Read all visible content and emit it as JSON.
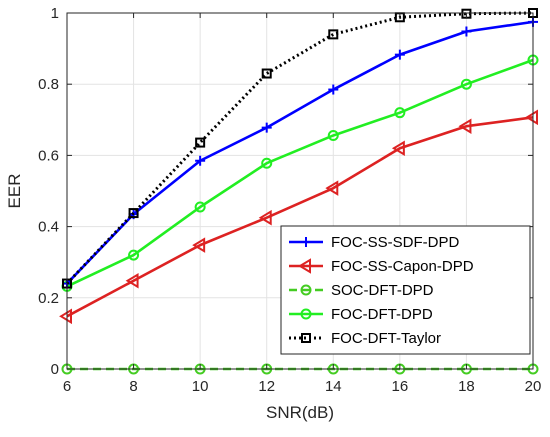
{
  "chart_data": {
    "type": "line",
    "xlabel": "SNR(dB)",
    "ylabel": "EER",
    "xlim": [
      6,
      20
    ],
    "ylim": [
      0,
      1
    ],
    "x": [
      6,
      8,
      10,
      12,
      14,
      16,
      18,
      20
    ],
    "xticks": [
      "6",
      "8",
      "10",
      "12",
      "14",
      "16",
      "18",
      "20"
    ],
    "yticks": [
      "0",
      "0.2",
      "0.4",
      "0.6",
      "0.8",
      "1"
    ],
    "grid": true,
    "legend_position": "bottom-right",
    "series": [
      {
        "name": "FOC-SS-SDF-DPD",
        "values": [
          0.24,
          0.435,
          0.585,
          0.678,
          0.785,
          0.883,
          0.948,
          0.975
        ],
        "color": "#0000ff",
        "marker": "plus",
        "dash": "solid"
      },
      {
        "name": "FOC-SS-Capon-DPD",
        "values": [
          0.148,
          0.248,
          0.348,
          0.425,
          0.508,
          0.62,
          0.682,
          0.707
        ],
        "color": "#dd2222",
        "marker": "triangle-left",
        "dash": "solid"
      },
      {
        "name": "SOC-DFT-DPD",
        "values": [
          0,
          0,
          0,
          0,
          0,
          0,
          0,
          0
        ],
        "color": "#44cc22",
        "marker": "circle",
        "dash": "dashed"
      },
      {
        "name": "FOC-DFT-DPD",
        "values": [
          0.232,
          0.32,
          0.455,
          0.578,
          0.656,
          0.72,
          0.8,
          0.868
        ],
        "color": "#22ee22",
        "marker": "circle",
        "dash": "solid"
      },
      {
        "name": "FOC-DFT-Taylor",
        "values": [
          0.24,
          0.438,
          0.636,
          0.83,
          0.94,
          0.988,
          0.998,
          1.0
        ],
        "color": "#000000",
        "marker": "square",
        "dash": "dotted"
      }
    ]
  }
}
